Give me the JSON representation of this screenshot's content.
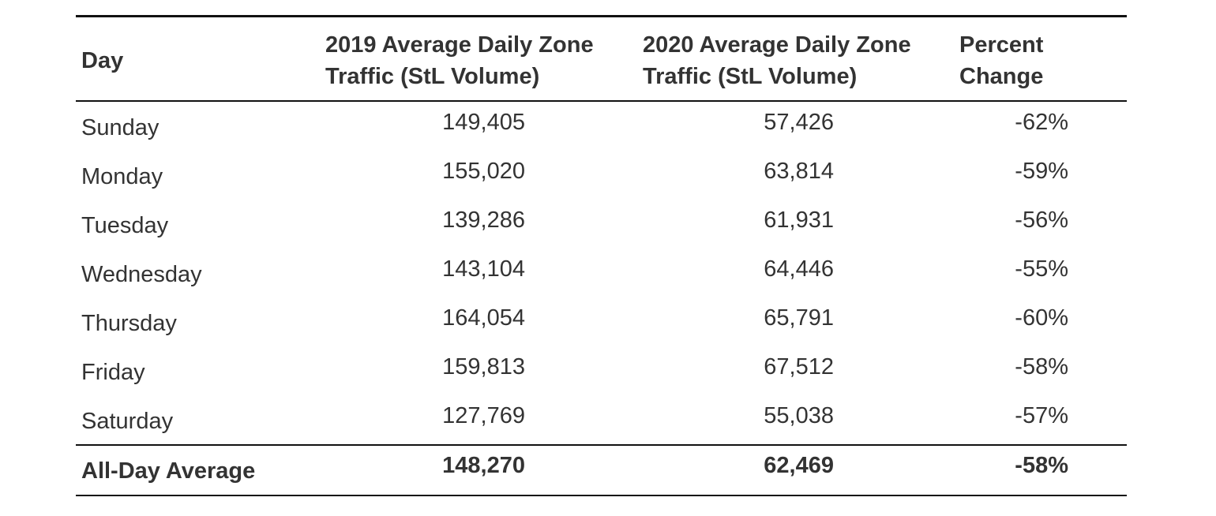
{
  "table": {
    "headers": [
      "Day",
      "2019 Average Daily Zone Traffic (StL Volume)",
      "2020 Average Daily Zone Traffic (StL Volume)",
      "Percent Change"
    ],
    "rows": [
      [
        "Sunday",
        "149,405",
        "57,426",
        "-62%"
      ],
      [
        "Monday",
        "155,020",
        "63,814",
        "-59%"
      ],
      [
        "Tuesday",
        "139,286",
        "61,931",
        "-56%"
      ],
      [
        "Wednesday",
        "143,104",
        "64,446",
        "-55%"
      ],
      [
        "Thursday",
        "164,054",
        "65,791",
        "-60%"
      ],
      [
        "Friday",
        "159,813",
        "67,512",
        "-58%"
      ],
      [
        "Saturday",
        "127,769",
        "55,038",
        "-57%"
      ]
    ],
    "footer": [
      "All-Day Average",
      "148,270",
      "62,469",
      "-58%"
    ]
  }
}
